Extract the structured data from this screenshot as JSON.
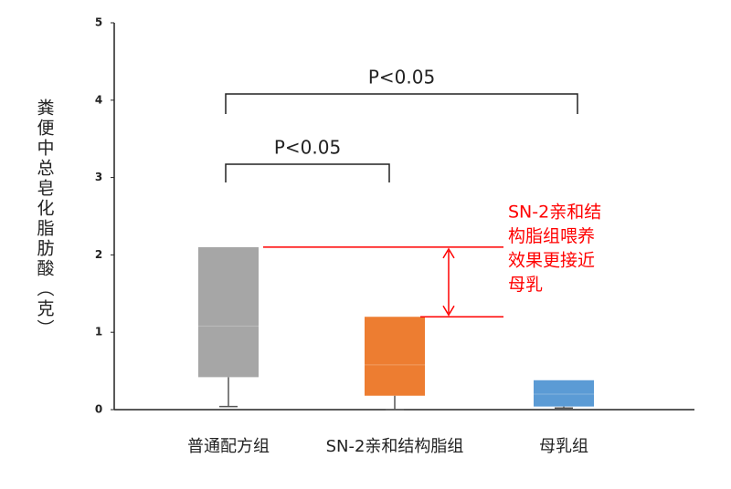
{
  "chart_data": {
    "type": "box",
    "y_label": "粪便中总皂化脂肪酸（克）",
    "categories": [
      "普通配方组",
      "SN-2亲和结构脂组",
      "母乳组"
    ],
    "colors": [
      "#a6a6a6",
      "#ed7d31",
      "#5b9bd5"
    ],
    "boxes": [
      {
        "min": 0.04,
        "q1": 0.42,
        "median": 1.08,
        "q3": 2.1,
        "max": 2.1
      },
      {
        "min": 0.0,
        "q1": 0.18,
        "median": 0.58,
        "q3": 1.2,
        "max": 1.2
      },
      {
        "min": 0.02,
        "q1": 0.04,
        "median": 0.2,
        "q3": 0.38,
        "max": 0.38
      }
    ],
    "ylim": [
      0,
      5
    ],
    "yticks": [
      0,
      1,
      2,
      3,
      4,
      5
    ],
    "significance": [
      "P<0.05",
      "P<0.05"
    ],
    "annotation": [
      "SN-2亲和结",
      "构脂组喂养",
      "效果更接近",
      "母乳"
    ],
    "annotation_color": "#ff0000"
  }
}
